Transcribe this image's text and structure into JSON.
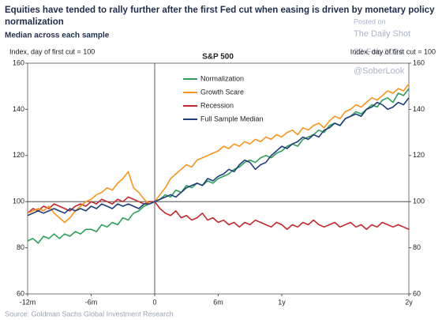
{
  "chart_data": {
    "type": "line",
    "title": "Equities have tended to rally further after the first Fed cut when easing is driven by monetary policy normalization",
    "subtitle": "Median across each sample",
    "plot_title": "S&P 500",
    "ylabel": "Index, day of first cut = 100",
    "y2label": "Index, day of first cut = 100",
    "source": "Source: Goldman Sachs Global Investment Research",
    "watermark": [
      "Posted on",
      "The Daily Shot",
      "22-Feb-2024",
      "@SoberLook"
    ],
    "xlim": [
      -12,
      24
    ],
    "xticks": [
      {
        "value": -12,
        "label": "-12m"
      },
      {
        "value": -6,
        "label": "-6m"
      },
      0,
      {
        "value": 6,
        "label": "6m"
      },
      {
        "value": 12,
        "label": "1y"
      },
      {
        "value": 24,
        "label": "2y"
      }
    ],
    "ylim": [
      60,
      160
    ],
    "yticks": [
      60,
      80,
      100,
      120,
      140,
      160
    ],
    "y2lim": [
      60,
      160
    ],
    "y2ticks": [
      60,
      80,
      100,
      120,
      140,
      160
    ],
    "hline": 100,
    "vline": 0,
    "x": [
      -12,
      -11.5,
      -11,
      -10.5,
      -10,
      -9.5,
      -9,
      -8.5,
      -8,
      -7.5,
      -7,
      -6.5,
      -6,
      -5.5,
      -5,
      -4.5,
      -4,
      -3.5,
      -3,
      -2.5,
      -2,
      -1.5,
      -1,
      -0.5,
      0,
      0.5,
      1,
      1.5,
      2,
      2.5,
      3,
      3.5,
      4,
      4.5,
      5,
      5.5,
      6,
      6.5,
      7,
      7.5,
      8,
      8.5,
      9,
      9.5,
      10,
      10.5,
      11,
      11.5,
      12,
      12.5,
      13,
      13.5,
      14,
      14.5,
      15,
      15.5,
      16,
      16.5,
      17,
      17.5,
      18,
      18.5,
      19,
      19.5,
      20,
      20.5,
      21,
      21.5,
      22,
      22.5,
      23,
      23.5,
      24
    ],
    "series": [
      {
        "name": "Normalization",
        "color": "#2e9e5b",
        "values": [
          83,
          84,
          82,
          85,
          84,
          86,
          84,
          86,
          85,
          87,
          86,
          88,
          88,
          87,
          90,
          89,
          91,
          90,
          93,
          92,
          95,
          96,
          98,
          99,
          100,
          101,
          103,
          102,
          105,
          104,
          107,
          106,
          108,
          107,
          109,
          108,
          110,
          111,
          112,
          114,
          115,
          117,
          118,
          117,
          119,
          120,
          119,
          121,
          122,
          124,
          125,
          124,
          127,
          128,
          129,
          131,
          130,
          133,
          134,
          133,
          136,
          137,
          139,
          138,
          140,
          142,
          141,
          144,
          145,
          143,
          147,
          146,
          149
        ]
      },
      {
        "name": "Growth Scare",
        "color": "#f7941d",
        "values": [
          95,
          96,
          97,
          96,
          98,
          95,
          93,
          91,
          93,
          96,
          98,
          100,
          101,
          103,
          104,
          106,
          105,
          108,
          110,
          113,
          106,
          104,
          101,
          99,
          100,
          103,
          106,
          110,
          112,
          114,
          116,
          115,
          118,
          119,
          120,
          121,
          122,
          124,
          123,
          125,
          124,
          126,
          125,
          127,
          126,
          128,
          127,
          129,
          128,
          130,
          131,
          129,
          132,
          131,
          133,
          134,
          132,
          135,
          137,
          136,
          139,
          140,
          142,
          141,
          143,
          145,
          144,
          146,
          148,
          147,
          149,
          148,
          151
        ]
      },
      {
        "name": "Recession",
        "color": "#c0282d",
        "values": [
          95,
          97,
          96,
          98,
          97,
          99,
          98,
          97,
          96,
          98,
          99,
          98,
          100,
          99,
          101,
          100,
          99,
          101,
          100,
          102,
          101,
          100,
          99,
          100,
          100,
          97,
          95,
          94,
          96,
          93,
          94,
          92,
          93,
          95,
          92,
          93,
          91,
          92,
          90,
          91,
          89,
          91,
          90,
          92,
          91,
          90,
          89,
          91,
          90,
          88,
          90,
          89,
          91,
          90,
          92,
          90,
          89,
          90,
          91,
          89,
          90,
          91,
          89,
          90,
          88,
          90,
          89,
          91,
          90,
          89,
          90,
          89,
          88
        ]
      },
      {
        "name": "Full Sample Median",
        "color": "#1f3d7a",
        "values": [
          94,
          95,
          96,
          95,
          96,
          97,
          96,
          95,
          97,
          96,
          97,
          96,
          98,
          97,
          99,
          98,
          97,
          99,
          98,
          99,
          98,
          97,
          99,
          99,
          100,
          101,
          102,
          103,
          102,
          104,
          106,
          107,
          108,
          107,
          110,
          109,
          111,
          112,
          114,
          113,
          116,
          118,
          117,
          114,
          116,
          117,
          120,
          122,
          124,
          123,
          125,
          126,
          128,
          127,
          129,
          128,
          131,
          132,
          134,
          133,
          136,
          137,
          138,
          137,
          140,
          141,
          143,
          142,
          140,
          141,
          143,
          142,
          145
        ]
      }
    ]
  }
}
